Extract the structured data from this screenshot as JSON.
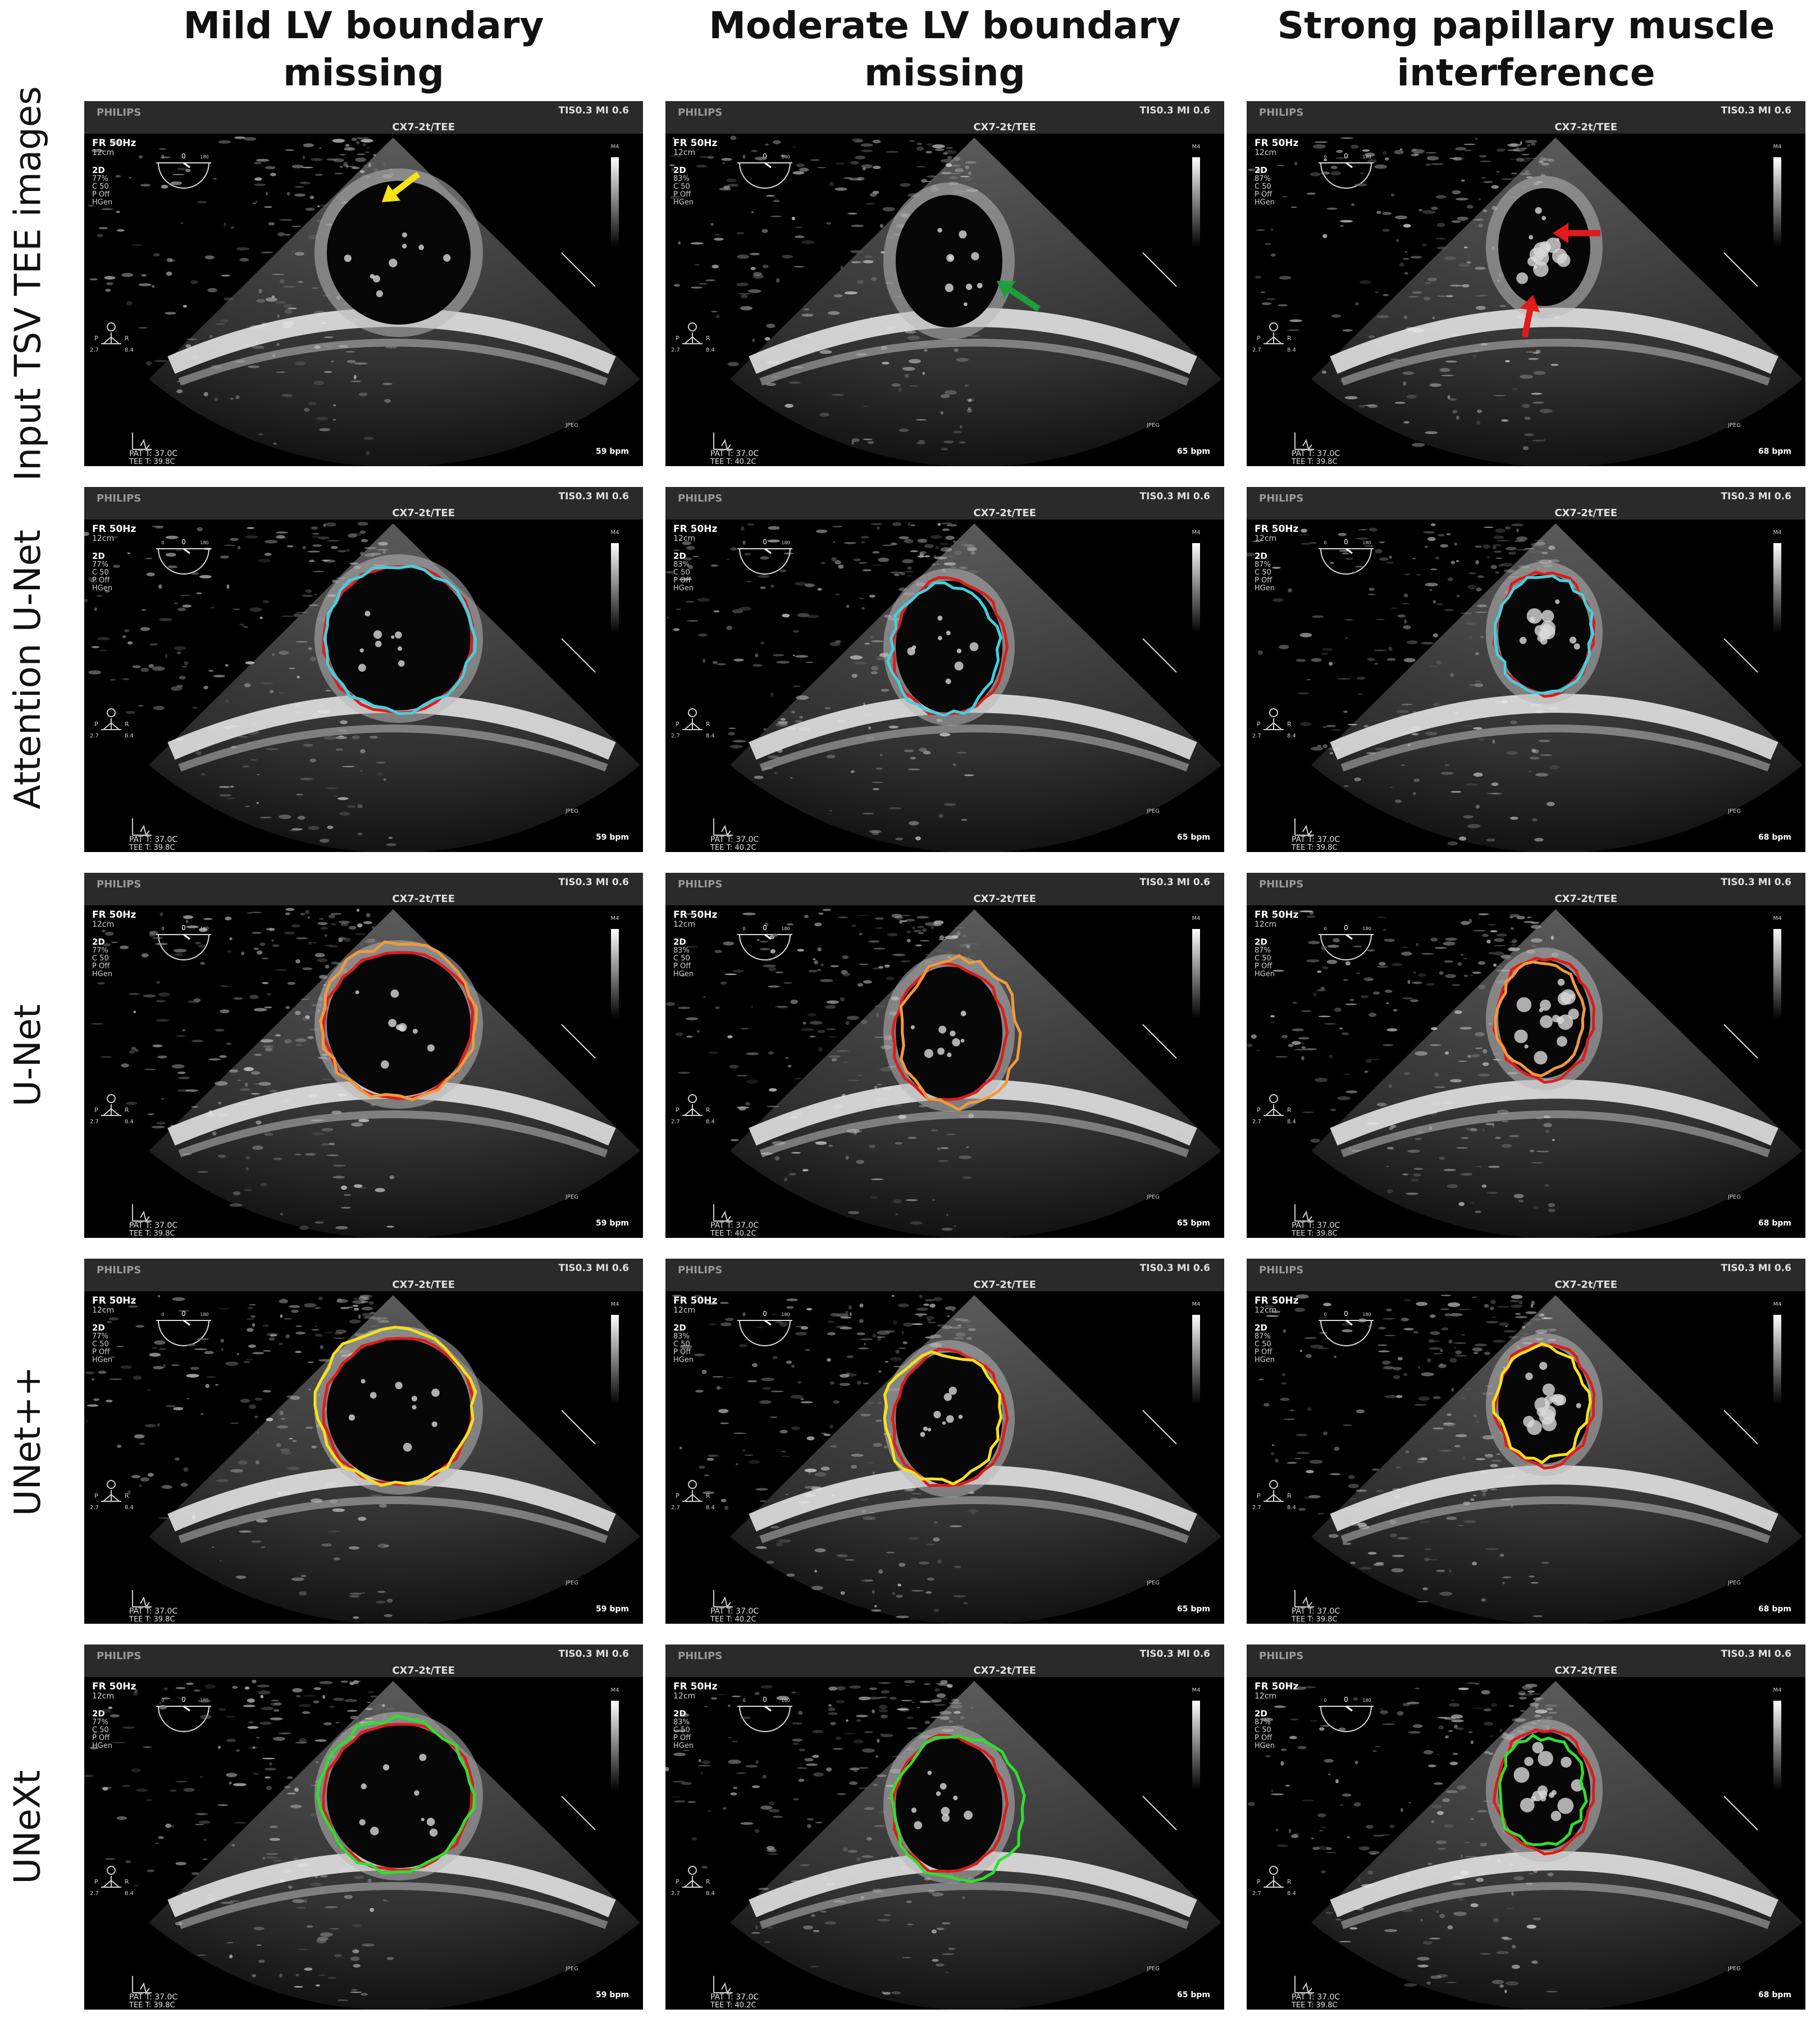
{
  "columns": [
    {
      "line1": "Mild LV boundary",
      "line2": "missing",
      "bpm": "59 bpm",
      "pct": "77%",
      "tee": "TEE T: 39.8C"
    },
    {
      "line1": "Moderate LV boundary",
      "line2": "missing",
      "bpm": "65 bpm",
      "pct": "83%",
      "tee": "TEE T: 40.2C"
    },
    {
      "line1": "Strong papillary muscle",
      "line2": "interference",
      "bpm": "68 bpm",
      "pct": "87%",
      "tee": "TEE T: 39.8C"
    }
  ],
  "rows": [
    {
      "label": "Input TSV TEE images"
    },
    {
      "label": "Attention U-Net",
      "pred_color": "#3fd2e0"
    },
    {
      "label": "U-Net",
      "pred_color": "#f09a3c"
    },
    {
      "label": "UNet++",
      "pred_color": "#f4e21c"
    },
    {
      "label": "UNeXt",
      "pred_color": "#2ee02e"
    }
  ],
  "ultrasound": {
    "brand": "PHILIPS",
    "tis_mi": "TIS0.3   MI 0.6",
    "probe": "CX7-2t/TEE",
    "fr": "FR 50Hz",
    "depth": "12cm",
    "mode": "2D",
    "c": "C 50",
    "p": "P Off",
    "hgen": "HGen",
    "m4": "M4",
    "jpeg": "JPEG",
    "pat_t": "PAT T: 37.0C",
    "scale_0": "0",
    "scale_180": "180",
    "p_label": "P",
    "r_label": "R",
    "v1": "2.7",
    "v2": "8.4"
  },
  "ground_truth_color": "#dd1c1c",
  "arrows": {
    "yellow": "#f5e415",
    "green": "#1e9e3c",
    "red": "#e21a1a"
  }
}
